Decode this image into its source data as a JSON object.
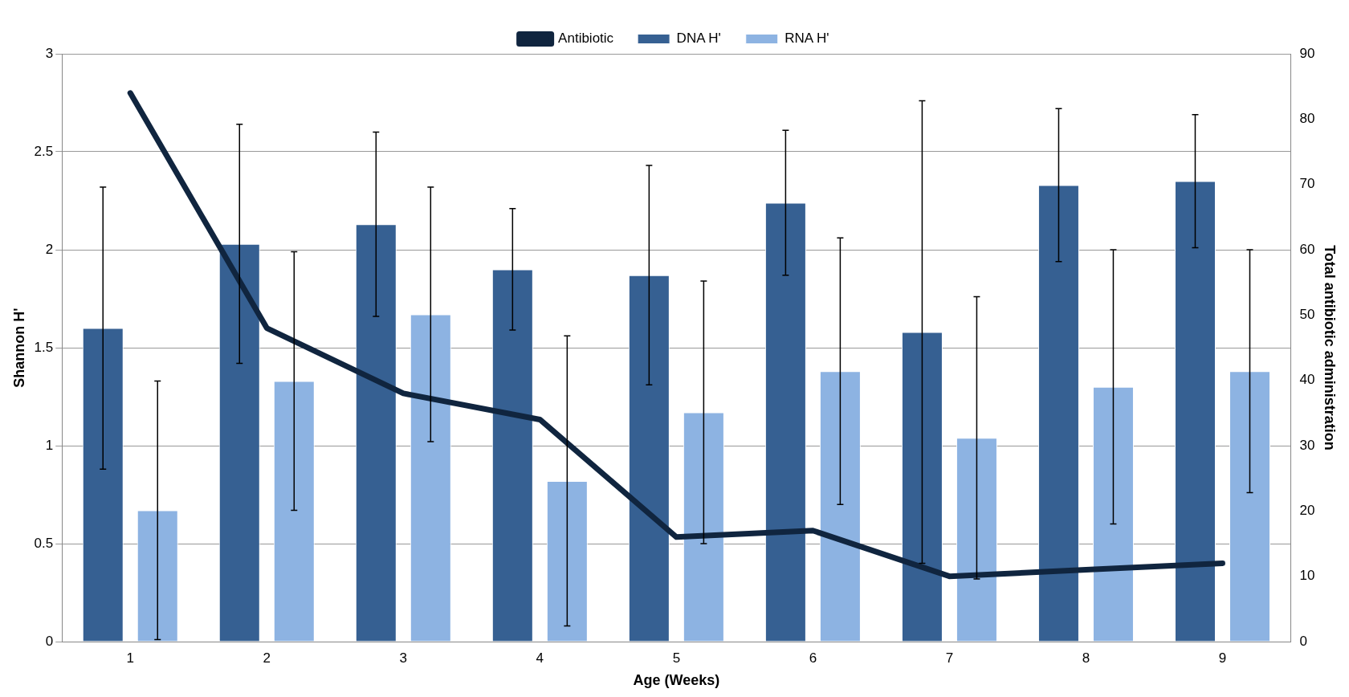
{
  "chart_data": {
    "type": "bar",
    "xlabel": "Age (Weeks)",
    "ylabel": "Shannon H'",
    "y2label": "Total antibiotic administration",
    "categories": [
      "1",
      "2",
      "3",
      "4",
      "5",
      "6",
      "7",
      "8",
      "9"
    ],
    "series": [
      {
        "name": "DNA H'",
        "color": "#366092",
        "values": [
          1.6,
          2.03,
          2.13,
          1.9,
          1.87,
          2.24,
          1.58,
          2.33,
          2.35
        ],
        "errors": [
          0.72,
          0.61,
          0.47,
          0.31,
          0.56,
          0.37,
          1.18,
          0.39,
          0.34
        ]
      },
      {
        "name": "RNA H'",
        "color": "#8db3e2",
        "values": [
          0.67,
          1.33,
          1.67,
          0.82,
          1.17,
          1.38,
          1.04,
          1.3,
          1.38
        ],
        "errors": [
          0.66,
          0.66,
          0.65,
          0.74,
          0.67,
          0.68,
          0.72,
          0.7,
          0.62
        ]
      },
      {
        "name": "Antibiotic",
        "type": "line",
        "axis": "y2",
        "color": "#10253f",
        "values": [
          84,
          48,
          38,
          34,
          16,
          17,
          10,
          11,
          12
        ],
        "marker": "none",
        "line_style": "solid"
      }
    ],
    "ylim": [
      0,
      3
    ],
    "yticks": [
      0,
      0.5,
      1,
      1.5,
      2,
      2.5,
      3
    ],
    "y2lim": [
      0,
      90
    ],
    "y2ticks": [
      0,
      10,
      20,
      30,
      40,
      50,
      60,
      70,
      80,
      90
    ],
    "grid": "y",
    "legend": "top"
  }
}
